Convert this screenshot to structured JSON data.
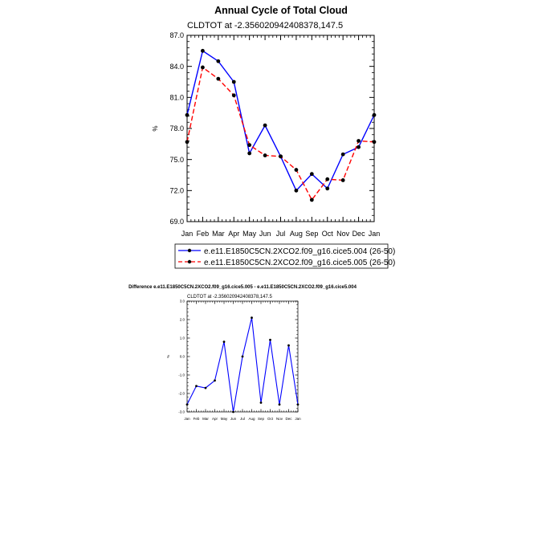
{
  "chart_data": [
    {
      "type": "line",
      "title": "Annual Cycle of Total Cloud",
      "subtitle": "CLDTOT at -2.356020942408378,147.5",
      "xlabel": "",
      "ylabel": "%",
      "categories": [
        "Jan",
        "Feb",
        "Mar",
        "Apr",
        "May",
        "Jun",
        "Jul",
        "Aug",
        "Sep",
        "Oct",
        "Nov",
        "Dec",
        "Jan"
      ],
      "ylim": [
        69.0,
        87.0
      ],
      "yticks": [
        "69.0",
        "72.0",
        "75.0",
        "78.0",
        "81.0",
        "84.0",
        "87.0"
      ],
      "series": [
        {
          "name": "e.e11.E1850C5CN.2XCO2.f09_g16.cice5.004 (26-50)",
          "color": "#0000ff",
          "dash": "solid",
          "values": [
            79.3,
            85.5,
            84.5,
            82.5,
            75.6,
            78.3,
            75.3,
            72.0,
            73.6,
            72.2,
            75.5,
            76.2,
            79.3
          ]
        },
        {
          "name": "e.e11.E1850C5CN.2XCO2.f09_g16.cice5.005 (26-50)",
          "color": "#ff0000",
          "dash": "dashed",
          "values": [
            76.7,
            83.9,
            82.8,
            81.2,
            76.4,
            75.4,
            75.3,
            74.0,
            71.1,
            73.1,
            73.0,
            76.8,
            76.7
          ]
        }
      ],
      "legend_position": "bottom"
    },
    {
      "type": "line",
      "title": "Difference e.e11.E1850C5CN.2XCO2.f09_g16.cice5.005 - e.e11.E1850C5CN.2XCO2.f09_g16.cice5.004",
      "subtitle": "CLDTOT at -2.356020942408378,147.5",
      "xlabel": "",
      "ylabel": "%",
      "categories": [
        "Jan",
        "Feb",
        "Mar",
        "Apr",
        "May",
        "Jun",
        "Jul",
        "Aug",
        "Sep",
        "Oct",
        "Nov",
        "Dec",
        "Jan"
      ],
      "ylim": [
        -3.0,
        3.0
      ],
      "yticks": [
        "-3.0",
        "-2.0",
        "-1.0",
        "0.0",
        "1.0",
        "2.0",
        "3.0"
      ],
      "series": [
        {
          "name": "difference",
          "color": "#0000ff",
          "dash": "solid",
          "values": [
            -2.6,
            -1.6,
            -1.7,
            -1.3,
            0.8,
            -3.0,
            0.0,
            2.1,
            -2.5,
            0.9,
            -2.6,
            0.6,
            -2.6
          ]
        }
      ]
    }
  ]
}
